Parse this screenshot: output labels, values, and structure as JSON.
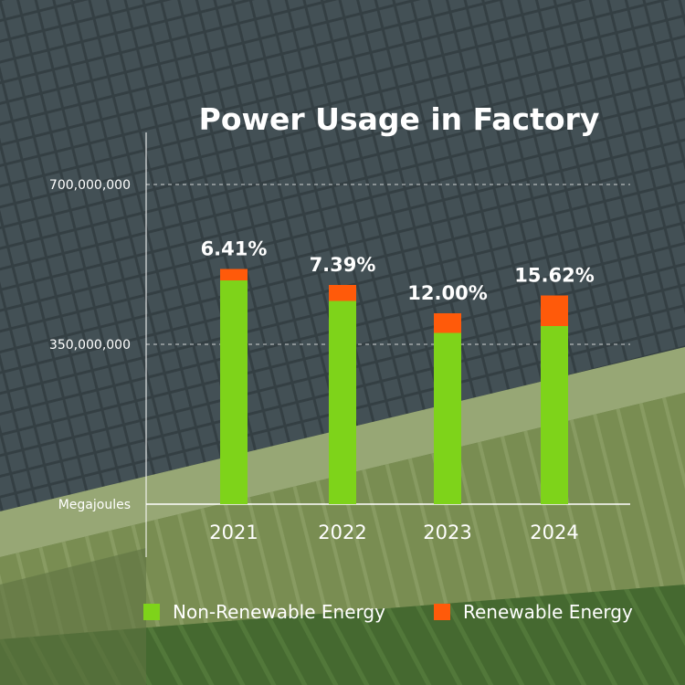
{
  "chart_data": {
    "type": "bar",
    "stacked": true,
    "title": "Power Usage in Factory",
    "ylabel": "Megajoules",
    "ylim": [
      0,
      875000000
    ],
    "yticks": [
      350000000,
      700000000
    ],
    "ytick_labels": [
      "350,000,000",
      "700,000,000"
    ],
    "categories": [
      "2021",
      "2022",
      "2023",
      "2024"
    ],
    "series": [
      {
        "name": "Non-Renewable Energy",
        "color": "#7ed31a",
        "values": [
          490000000,
          445000000,
          375000000,
          390000000
        ]
      },
      {
        "name": "Renewable Energy",
        "color": "#ff5a0a",
        "values": [
          25000000,
          35000000,
          43000000,
          67000000
        ]
      }
    ],
    "data_labels": [
      "6.41%",
      "7.39%",
      "12.00%",
      "15.62%"
    ],
    "grid": true,
    "legend": "bottom"
  }
}
